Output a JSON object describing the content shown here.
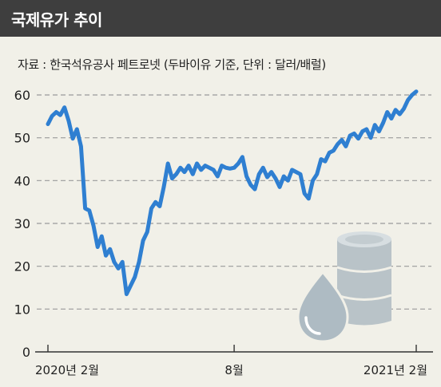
{
  "header": {
    "title": "국제유가 추이"
  },
  "chart_data": {
    "type": "line",
    "title": "국제유가 추이",
    "subtitle": "자료 : 한국석유공사 페트로넷 (두바이유 기준, 단위 : 달러/배럴)",
    "x_tick_labels": [
      "2020년 2월",
      "8월",
      "2021년 2월"
    ],
    "y_ticks": [
      0,
      10,
      20,
      30,
      40,
      50,
      60
    ],
    "ylim": [
      0,
      60
    ],
    "grid": true,
    "color": "#2f7fd1",
    "decoration": "oil-barrel-and-drop-icon",
    "series": [
      {
        "values": [
          53.2,
          55.1,
          56.0,
          55.3,
          57.1,
          54.0,
          49.8,
          52.0,
          48.0,
          33.5,
          33.0,
          29.5,
          24.5,
          27.0,
          22.5,
          24.0,
          21.0,
          19.5,
          21.0,
          13.5,
          15.5,
          17.5,
          21.0,
          26.0,
          28.0,
          33.5,
          35.0,
          34.0,
          38.5,
          44.0,
          40.5,
          41.5,
          43.0,
          42.0,
          43.5,
          41.5,
          44.0,
          42.5,
          43.5,
          43.0,
          42.5,
          41.0,
          43.5,
          43.0,
          42.8,
          43.0,
          44.0,
          45.5,
          41.0,
          39.0,
          38.0,
          41.5,
          43.0,
          40.8,
          42.0,
          40.5,
          38.5,
          41.0,
          40.0,
          42.5,
          42.0,
          41.5,
          37.0,
          35.8,
          40.0,
          41.5,
          45.0,
          44.5,
          46.5,
          47.0,
          48.5,
          49.5,
          48.0,
          50.5,
          51.0,
          49.8,
          51.5,
          52.0,
          50.0,
          53.0,
          51.5,
          53.5,
          56.0,
          54.5,
          56.5,
          55.5,
          56.8,
          58.8,
          60.0,
          60.8
        ]
      }
    ]
  }
}
